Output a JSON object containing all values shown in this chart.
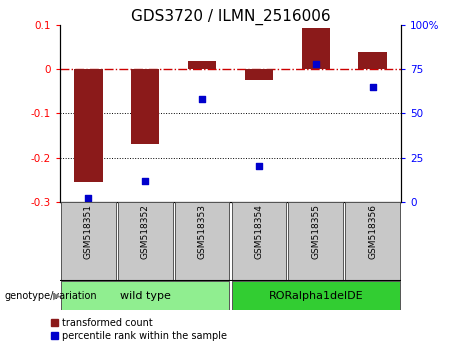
{
  "title": "GDS3720 / ILMN_2516006",
  "samples": [
    "GSM518351",
    "GSM518352",
    "GSM518353",
    "GSM518354",
    "GSM518355",
    "GSM518356"
  ],
  "red_values": [
    -0.255,
    -0.17,
    0.018,
    -0.025,
    0.092,
    0.038
  ],
  "blue_values_pct": [
    2,
    12,
    58,
    20,
    78,
    65
  ],
  "ylim_left": [
    -0.3,
    0.1
  ],
  "ylim_right": [
    0,
    100
  ],
  "groups": [
    {
      "label": "wild type",
      "samples": [
        0,
        1,
        2
      ],
      "color": "#90EE90"
    },
    {
      "label": "RORalpha1delDE",
      "samples": [
        3,
        4,
        5
      ],
      "color": "#32CD32"
    }
  ],
  "bar_color": "#8B1A1A",
  "dot_color": "#0000CC",
  "zero_line_color": "#CC0000",
  "dotted_line_color": "#000000",
  "bg_color": "#FFFFFF",
  "group_label": "genotype/variation",
  "legend_red": "transformed count",
  "legend_blue": "percentile rank within the sample",
  "title_fontsize": 11,
  "tick_fontsize": 7.5,
  "sample_fontsize": 6.5,
  "group_fontsize": 8,
  "legend_fontsize": 7
}
